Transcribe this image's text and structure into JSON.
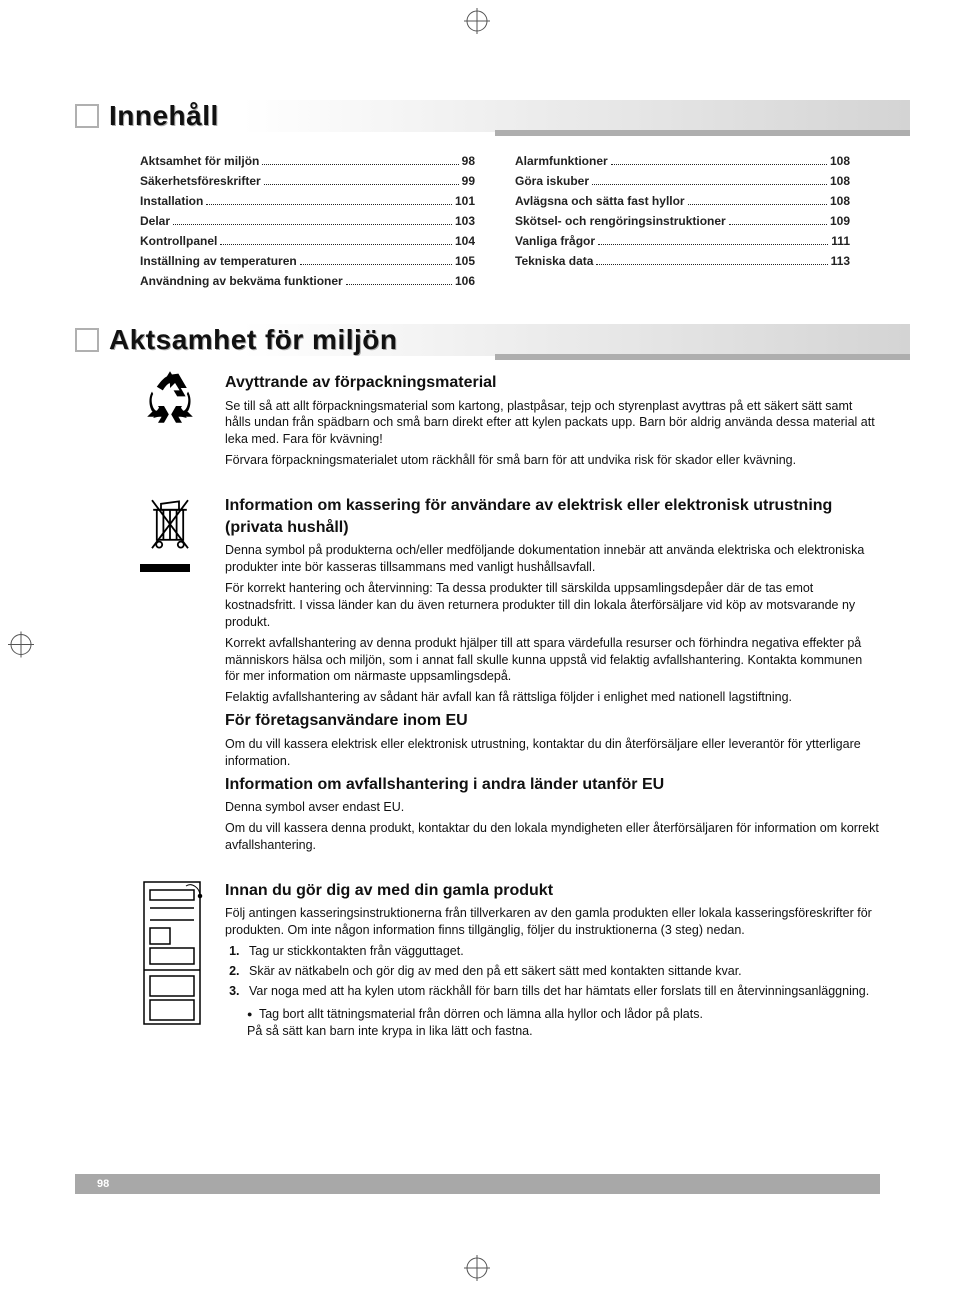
{
  "sections": {
    "toc_title": "Innehåll",
    "env_title": "Aktsamhet för miljön"
  },
  "toc_left": [
    {
      "label": "Aktsamhet för miljön",
      "page": "98"
    },
    {
      "label": "Säkerhetsföreskrifter",
      "page": "99"
    },
    {
      "label": "Installation",
      "page": "101"
    },
    {
      "label": "Delar",
      "page": "103"
    },
    {
      "label": "Kontrollpanel",
      "page": "104"
    },
    {
      "label": "Inställning av temperaturen",
      "page": "105"
    },
    {
      "label": "Användning av bekväma funktioner",
      "page": "106"
    }
  ],
  "toc_right": [
    {
      "label": "Alarmfunktioner",
      "page": "108"
    },
    {
      "label": "Göra iskuber",
      "page": "108"
    },
    {
      "label": "Avlägsna och sätta fast hyllor",
      "page": "108"
    },
    {
      "label": "Skötsel- och rengöringsinstruktioner",
      "page": "109"
    },
    {
      "label": "Vanliga frågor",
      "page": "111"
    },
    {
      "label": "Tekniska data",
      "page": "113"
    }
  ],
  "packaging": {
    "h": "Avyttrande av förpackningsmaterial",
    "p1": "Se till så att allt förpackningsmaterial som kartong, plastpåsar, tejp och styrenplast avyttras på ett säkert sätt samt hålls undan från spädbarn och små barn direkt efter att kylen packats upp. Barn bör aldrig använda dessa material att leka med. Fara för kvävning!",
    "p2": "Förvara förpackningsmaterialet utom räckhåll för små barn för att undvika risk för skador eller kvävning."
  },
  "weee": {
    "h": "Information om kassering för användare av elektrisk eller elektronisk utrustning (privata hushåll)",
    "p1": "Denna symbol på produkterna och/eller medföljande dokumentation innebär att använda elektriska och elektroniska produkter inte bör kasseras tillsammans med vanligt hushållsavfall.",
    "p2": "För korrekt hantering och återvinning: Ta dessa produkter till särskilda uppsamlingsdepåer där de tas emot kostnadsfritt. I vissa länder kan du även returnera produkter till din lokala återförsäljare vid köp av motsvarande ny produkt.",
    "p3": "Korrekt avfallshantering av denna produkt hjälper till att spara värdefulla resurser och förhindra negativa effekter på människors hälsa och miljön, som i annat fall skulle kunna uppstå vid felaktig avfallshantering. Kontakta kommunen för mer information om närmaste uppsamlingsdepå.",
    "p4": "Felaktig avfallshantering av sådant här avfall kan få rättsliga följder i enlighet med nationell lagstiftning."
  },
  "business": {
    "h": "För företagsanvändare inom EU",
    "p1": "Om du vill kassera elektrisk eller elektronisk utrustning, kontaktar du din återförsäljare eller leverantör för ytterligare information."
  },
  "noneu": {
    "h": "Information om avfallshantering i andra länder utanför EU",
    "p1": "Denna symbol avser endast EU.",
    "p2": "Om du vill kassera denna produkt, kontaktar du den lokala myndigheten eller återförsäljaren för information om korrekt avfallshantering."
  },
  "before": {
    "h": "Innan du gör dig av med din gamla produkt",
    "p1": "Följ antingen kasseringsinstruktionerna från tillverkaren av den gamla produkten eller lokala kasseringsföreskrifter för produkten. Om inte någon information finns tillgänglig, följer du instruktionerna (3 steg) nedan.",
    "li1": "Tag ur stickkontakten från vägguttaget.",
    "li2": "Skär av nätkabeln och gör dig av med den på ett säkert sätt med kontakten sittande kvar.",
    "li3": "Var noga med att ha kylen utom räckhåll för barn tills det har hämtats eller forslats till en återvinningsanläggning.",
    "b1": "Tag bort allt tätningsmaterial från dörren och lämna alla hyllor och lådor på plats.",
    "b2": "På så sätt kan barn inte krypa in lika lätt och fastna."
  },
  "page_number": "98",
  "colors": {
    "text": "#111111",
    "header_shadow": "#aaaaaa",
    "bar_grey": "#d4d4d4",
    "footer_grey": "#a8a8a8"
  }
}
